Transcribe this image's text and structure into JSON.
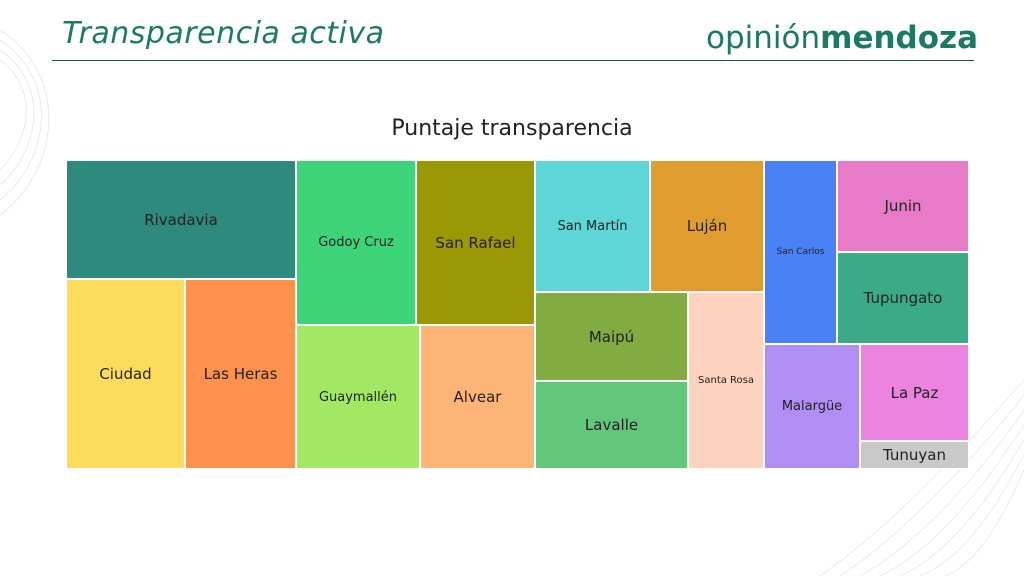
{
  "header": {
    "title": "Transparencia activa",
    "brand_regular": "opinión",
    "brand_bold": "mendoza"
  },
  "colors": {
    "brand_green": "#1a7a63",
    "rule": "#1f4f47"
  },
  "chart_data": {
    "type": "treemap",
    "title": "Puntaje transparencia",
    "legend": "none",
    "items": [
      {
        "name": "Rivadavia",
        "color": "#2e8a7c"
      },
      {
        "name": "Ciudad",
        "color": "#fddc5c"
      },
      {
        "name": "Las Heras",
        "color": "#fe914c"
      },
      {
        "name": "Godoy Cruz",
        "color": "#3cd379"
      },
      {
        "name": "Guaymallén",
        "color": "#a3e862"
      },
      {
        "name": "San Rafael",
        "color": "#9a9804"
      },
      {
        "name": "Alvear",
        "color": "#feb377"
      },
      {
        "name": "San Martín",
        "color": "#5ed5d6"
      },
      {
        "name": "Luján",
        "color": "#e09c2e"
      },
      {
        "name": "Maipú",
        "color": "#82ab42"
      },
      {
        "name": "Lavalle",
        "color": "#62c77b"
      },
      {
        "name": "Santa Rosa",
        "color": "#fdd2be"
      },
      {
        "name": "San Carlos",
        "color": "#4981f6"
      },
      {
        "name": "Junin",
        "color": "#e87bc8"
      },
      {
        "name": "Tupungato",
        "color": "#3aab86"
      },
      {
        "name": "Malargüe",
        "color": "#b28df3"
      },
      {
        "name": "La Paz",
        "color": "#ed83e0"
      },
      {
        "name": "Tunuyan",
        "color": "#c9c9c9"
      }
    ]
  }
}
